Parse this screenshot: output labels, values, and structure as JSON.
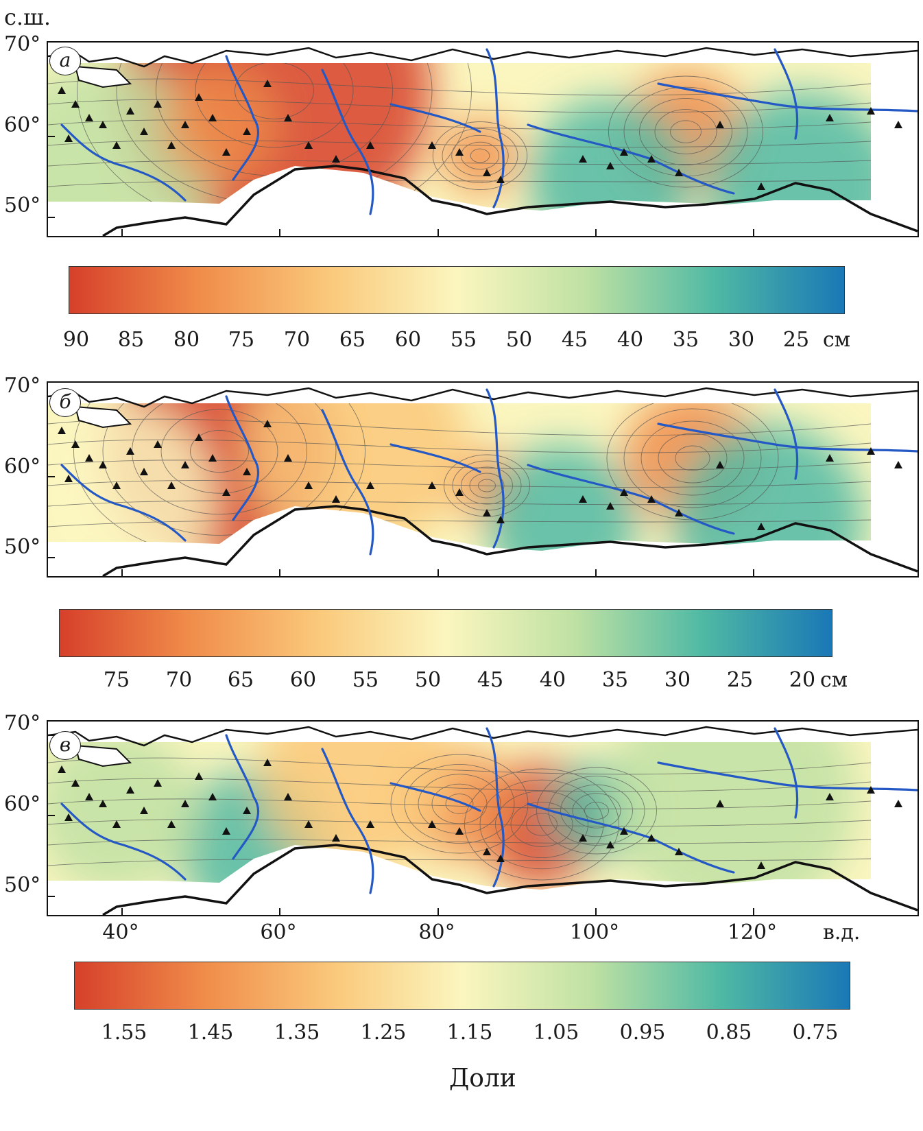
{
  "axis": {
    "lat_unit": "с.ш.",
    "lon_unit": "в.д.",
    "lat_ticks": [
      "70°",
      "60°",
      "50°"
    ],
    "lon_ticks": [
      "40°",
      "60°",
      "80°",
      "100°",
      "120°"
    ]
  },
  "panels": [
    {
      "letter": "а",
      "colorbar_ticks": [
        "90",
        "85",
        "80",
        "75",
        "70",
        "65",
        "60",
        "55",
        "50",
        "45",
        "40",
        "35",
        "30",
        "25"
      ],
      "colorbar_unit": "см",
      "colorbar_range": [
        92,
        21
      ]
    },
    {
      "letter": "б",
      "colorbar_ticks": [
        "75",
        "70",
        "65",
        "60",
        "55",
        "50",
        "45",
        "40",
        "35",
        "30",
        "25",
        "20"
      ],
      "colorbar_unit": "см",
      "colorbar_range": [
        79,
        17
      ]
    },
    {
      "letter": "в",
      "colorbar_ticks": [
        "1.55",
        "1.45",
        "1.35",
        "1.25",
        "1.15",
        "1.05",
        "0.95",
        "0.85",
        "0.75"
      ],
      "colorbar_unit": "Доли",
      "colorbar_range": [
        1.62,
        0.72
      ]
    }
  ],
  "colors": {
    "scale": [
      "#d6402a",
      "#f08c4a",
      "#fac87a",
      "#fbf6bf",
      "#bfe1a3",
      "#4fb9a4",
      "#1a78b6"
    ],
    "river": "#2458c4",
    "coast": "#111111",
    "station": "#111111"
  }
}
